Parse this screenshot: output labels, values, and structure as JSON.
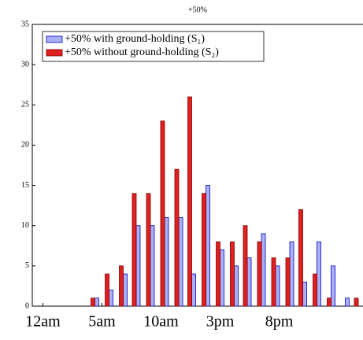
{
  "chart_data": {
    "type": "bar",
    "title": "+50%",
    "x": [
      4.4,
      5.6,
      6.8,
      7.9,
      9.1,
      10.3,
      11.5,
      12.6,
      13.8,
      15.0,
      16.2,
      17.3,
      18.5,
      19.7,
      20.9,
      22.0,
      23.2,
      24.4,
      25.6,
      26.7
    ],
    "series": [
      {
        "name": "+50% with ground-holding (S₁)",
        "color": "#aab0f5",
        "values": [
          1,
          2,
          4,
          10,
          10,
          11,
          11,
          4,
          15,
          7,
          5,
          6,
          9,
          5,
          8,
          3,
          8,
          5,
          1,
          0
        ]
      },
      {
        "name": "+50% without ground-holding (S₂)",
        "color": "#e02020",
        "values": [
          1,
          4,
          5,
          14,
          14,
          23,
          17,
          26,
          14,
          8,
          8,
          10,
          8,
          6,
          6,
          12,
          4,
          1,
          0,
          1
        ]
      }
    ],
    "xlim": [
      -0.9,
      27.1
    ],
    "xticks": [
      {
        "value": 0,
        "label": "12am"
      },
      {
        "value": 5,
        "label": "5am"
      },
      {
        "value": 10,
        "label": "10am"
      },
      {
        "value": 15,
        "label": "3pm"
      },
      {
        "value": 20,
        "label": "8pm"
      }
    ],
    "ylim": [
      0,
      35
    ],
    "yticks": [
      0,
      5,
      10,
      15,
      20,
      25,
      30,
      35
    ],
    "legend": "upper left"
  }
}
